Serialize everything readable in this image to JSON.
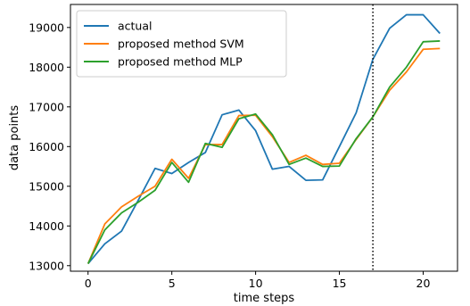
{
  "chart_data": {
    "type": "line",
    "title": "",
    "xlabel": "time steps",
    "ylabel": "data points",
    "xlim": [
      -1.05,
      22.05
    ],
    "ylim": [
      12860,
      19580
    ],
    "x_ticks": [
      0,
      5,
      10,
      15,
      20
    ],
    "y_ticks": [
      13000,
      14000,
      15000,
      16000,
      17000,
      18000,
      19000
    ],
    "grid": false,
    "legend_position": "top-left",
    "vertical_line": {
      "x": 17,
      "style": "dotted",
      "color": "#000000"
    },
    "x": [
      0,
      1,
      2,
      3,
      4,
      5,
      6,
      7,
      8,
      9,
      10,
      11,
      12,
      13,
      14,
      15,
      16,
      17,
      18,
      19,
      20,
      21
    ],
    "series": [
      {
        "name": "actual",
        "color": "#1f77b4",
        "values": [
          13050,
          13550,
          13870,
          14650,
          15450,
          15320,
          15600,
          15850,
          16800,
          16920,
          16400,
          15430,
          15500,
          15150,
          15160,
          16000,
          16850,
          18200,
          18980,
          19320,
          19320,
          18850
        ]
      },
      {
        "name": "proposed method SVM",
        "color": "#ff7f0e",
        "values": [
          13050,
          14050,
          14480,
          14750,
          15000,
          15680,
          15200,
          16050,
          16050,
          16780,
          16790,
          16250,
          15600,
          15780,
          15550,
          15580,
          16180,
          16750,
          17420,
          17880,
          18450,
          18470
        ]
      },
      {
        "name": "proposed method MLP",
        "color": "#2ca02c",
        "values": [
          13050,
          13900,
          14330,
          14600,
          14900,
          15600,
          15100,
          16080,
          15980,
          16700,
          16820,
          16300,
          15550,
          15710,
          15500,
          15510,
          16200,
          16750,
          17500,
          18000,
          18640,
          18660
        ]
      }
    ]
  }
}
